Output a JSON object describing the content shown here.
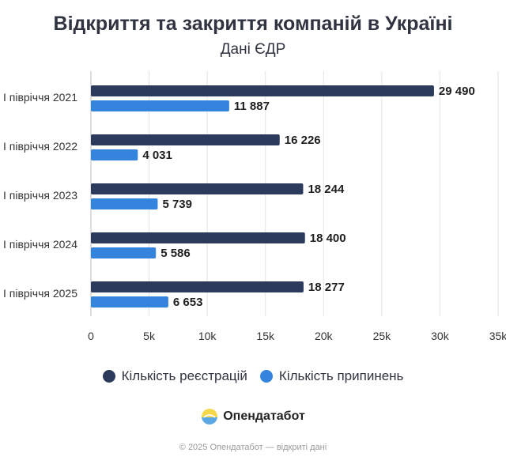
{
  "title": "Відкриття та закриття компаній в Україні",
  "subtitle": "Дані ЄДР",
  "colors": {
    "registrations": "#2c3a5c",
    "terminations": "#3483dc",
    "grid": "#e3e3e3"
  },
  "chart_data": {
    "type": "bar",
    "orientation": "horizontal",
    "categories": [
      "I півріччя 2021",
      "I півріччя 2022",
      "I півріччя 2023",
      "I півріччя 2024",
      "I півріччя 2025"
    ],
    "series": [
      {
        "name": "Кількість реєстрацій",
        "values": [
          29490,
          16226,
          18244,
          18400,
          18277
        ]
      },
      {
        "name": "Кількість припинень",
        "values": [
          11887,
          4031,
          5739,
          5586,
          6653
        ]
      }
    ],
    "value_labels": [
      [
        "29 490",
        "16 226",
        "18 244",
        "18 400",
        "18 277"
      ],
      [
        "11 887",
        "4 031",
        "5 739",
        "5 586",
        "6 653"
      ]
    ],
    "xlim": [
      0,
      35000
    ],
    "xticks": [
      0,
      5000,
      10000,
      15000,
      20000,
      25000,
      30000,
      35000
    ],
    "xtick_labels": [
      "0",
      "5k",
      "10k",
      "15k",
      "20k",
      "25k",
      "30k",
      "35k"
    ],
    "grid": "vertical",
    "legend_position": "bottom"
  },
  "legend": {
    "registrations_label": "Кількість реєстрацій",
    "terminations_label": "Кількість припинень"
  },
  "brand": {
    "name": "Опендатабот",
    "icon": "opendatabot-logo-icon"
  },
  "footer": "© 2025 Опендатабот — відкриті дані"
}
